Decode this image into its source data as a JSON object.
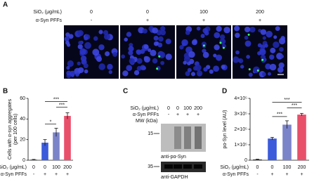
{
  "panel_a": {
    "label": "A",
    "row_labels": [
      "SiO₂ (μg/mL)",
      "α-Syn PFFs"
    ],
    "sio2": [
      "0",
      "0",
      "100",
      "200"
    ],
    "pffs": [
      "-",
      "+",
      "+",
      "+"
    ]
  },
  "panel_c": {
    "label": "C",
    "row_labels": [
      "SiO₂ (μg/mL)",
      "α-Syn PFFs"
    ],
    "sio2": [
      "0",
      "0",
      "100",
      "200"
    ],
    "pffs": [
      "-",
      "+",
      "+",
      "+"
    ],
    "mw_label": "MW (kDa)",
    "blots": [
      {
        "mw": "15",
        "antibody": "anti-pα-Syn"
      },
      {
        "mw": "35",
        "antibody": "anti-GAPDH"
      }
    ]
  },
  "chart_data": [
    {
      "type": "bar",
      "panel_label": "B",
      "y_label": [
        "Cells with α-syn aggregates",
        "(per 100 cells)"
      ],
      "row_labels": [
        "SiO₂ (μg/mL)",
        "α-Syn PFFs"
      ],
      "categories": [
        "0",
        "0",
        "100",
        "200"
      ],
      "categories2": [
        "-",
        "+",
        "+",
        "+"
      ],
      "values": [
        0.5,
        17,
        27,
        43
      ],
      "errors": [
        0.3,
        3,
        4,
        3
      ],
      "colors": [
        "#333333",
        "#3b5bdb",
        "#7b83c9",
        "#e8506a"
      ],
      "ylim": [
        0,
        60
      ],
      "yticks": [
        0,
        20,
        40,
        60
      ],
      "significance": [
        "*",
        "***",
        "***"
      ]
    },
    {
      "type": "bar",
      "panel_label": "D",
      "y_label": [
        "pα-Syn level (AU)"
      ],
      "row_labels": [
        "SiO₂ (μg/mL)",
        "α-Syn PFFs"
      ],
      "categories": [
        "0",
        "0",
        "100",
        "200"
      ],
      "categories2": [
        "-",
        "+",
        "+",
        "+"
      ],
      "values": [
        5000,
        140000,
        230000,
        295000
      ],
      "errors": [
        2000,
        8000,
        25000,
        8000
      ],
      "colors": [
        "#333333",
        "#3b5bdb",
        "#7b83c9",
        "#e8506a"
      ],
      "ylim": [
        0,
        400000
      ],
      "yticks": [
        0,
        {
          "value": 100000,
          "label": "1×10⁵"
        },
        {
          "value": 200000,
          "label": "2×10⁵"
        },
        {
          "value": 300000,
          "label": "3×10⁵"
        },
        {
          "value": 400000,
          "label": "4×10⁵"
        }
      ],
      "significance": [
        "***",
        "***",
        "***"
      ]
    }
  ]
}
